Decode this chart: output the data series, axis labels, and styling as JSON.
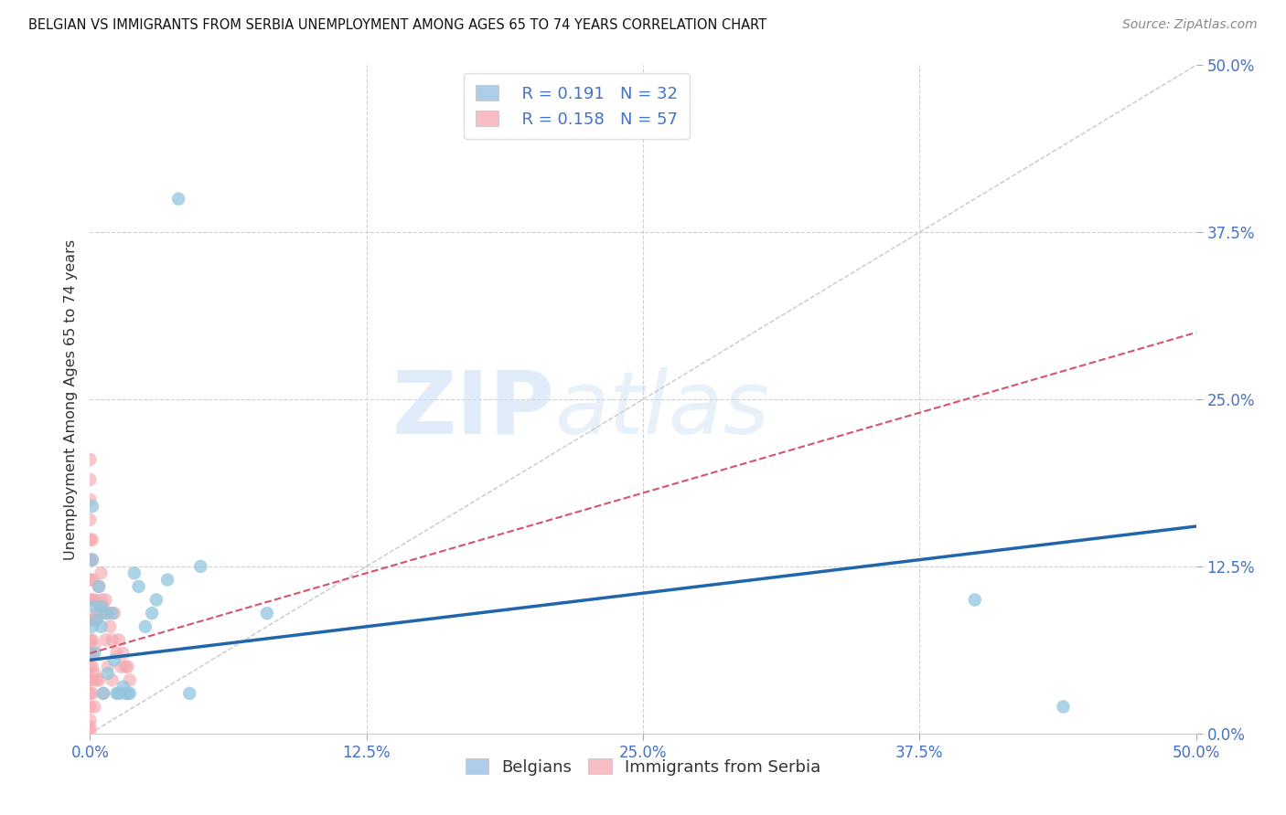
{
  "title": "BELGIAN VS IMMIGRANTS FROM SERBIA UNEMPLOYMENT AMONG AGES 65 TO 74 YEARS CORRELATION CHART",
  "source": "Source: ZipAtlas.com",
  "ylabel": "Unemployment Among Ages 65 to 74 years",
  "xlim": [
    0,
    0.5
  ],
  "ylim": [
    0,
    0.5
  ],
  "xticks": [
    0.0,
    0.125,
    0.25,
    0.375,
    0.5
  ],
  "yticks": [
    0.0,
    0.125,
    0.25,
    0.375,
    0.5
  ],
  "legend_r1": "R = 0.191",
  "legend_n1": "N = 32",
  "legend_r2": "R = 0.158",
  "legend_n2": "N = 57",
  "legend_label1": "Belgians",
  "legend_label2": "Immigrants from Serbia",
  "blue_color": "#92c5de",
  "pink_color": "#f4a9b0",
  "blue_line_color": "#2166ac",
  "pink_line_color": "#d6536d",
  "blue_scatter_x": [
    0.001,
    0.001,
    0.001,
    0.002,
    0.002,
    0.003,
    0.004,
    0.005,
    0.005,
    0.006,
    0.007,
    0.008,
    0.01,
    0.011,
    0.012,
    0.013,
    0.015,
    0.016,
    0.017,
    0.018,
    0.02,
    0.022,
    0.025,
    0.028,
    0.03,
    0.035,
    0.04,
    0.045,
    0.05,
    0.08,
    0.4,
    0.44
  ],
  "blue_scatter_y": [
    0.17,
    0.13,
    0.08,
    0.095,
    0.06,
    0.085,
    0.11,
    0.095,
    0.08,
    0.03,
    0.09,
    0.045,
    0.09,
    0.055,
    0.03,
    0.03,
    0.035,
    0.03,
    0.03,
    0.03,
    0.12,
    0.11,
    0.08,
    0.09,
    0.1,
    0.115,
    0.4,
    0.03,
    0.125,
    0.09,
    0.1,
    0.02
  ],
  "pink_scatter_x": [
    0.0,
    0.0,
    0.0,
    0.0,
    0.0,
    0.0,
    0.0,
    0.0,
    0.0,
    0.0,
    0.0,
    0.0,
    0.0,
    0.0,
    0.0,
    0.0,
    0.0,
    0.0,
    0.001,
    0.001,
    0.001,
    0.001,
    0.001,
    0.001,
    0.001,
    0.001,
    0.001,
    0.001,
    0.002,
    0.002,
    0.002,
    0.002,
    0.002,
    0.003,
    0.003,
    0.004,
    0.004,
    0.005,
    0.005,
    0.005,
    0.006,
    0.006,
    0.007,
    0.007,
    0.008,
    0.008,
    0.009,
    0.01,
    0.01,
    0.011,
    0.012,
    0.013,
    0.014,
    0.015,
    0.016,
    0.017,
    0.018
  ],
  "pink_scatter_y": [
    0.205,
    0.19,
    0.175,
    0.16,
    0.145,
    0.13,
    0.115,
    0.1,
    0.085,
    0.07,
    0.06,
    0.05,
    0.04,
    0.03,
    0.02,
    0.01,
    0.005,
    0.002,
    0.145,
    0.13,
    0.115,
    0.1,
    0.085,
    0.07,
    0.06,
    0.05,
    0.04,
    0.03,
    0.1,
    0.085,
    0.065,
    0.045,
    0.02,
    0.09,
    0.04,
    0.11,
    0.04,
    0.12,
    0.1,
    0.09,
    0.095,
    0.03,
    0.1,
    0.07,
    0.09,
    0.05,
    0.08,
    0.07,
    0.04,
    0.09,
    0.06,
    0.07,
    0.05,
    0.06,
    0.05,
    0.05,
    0.04
  ]
}
